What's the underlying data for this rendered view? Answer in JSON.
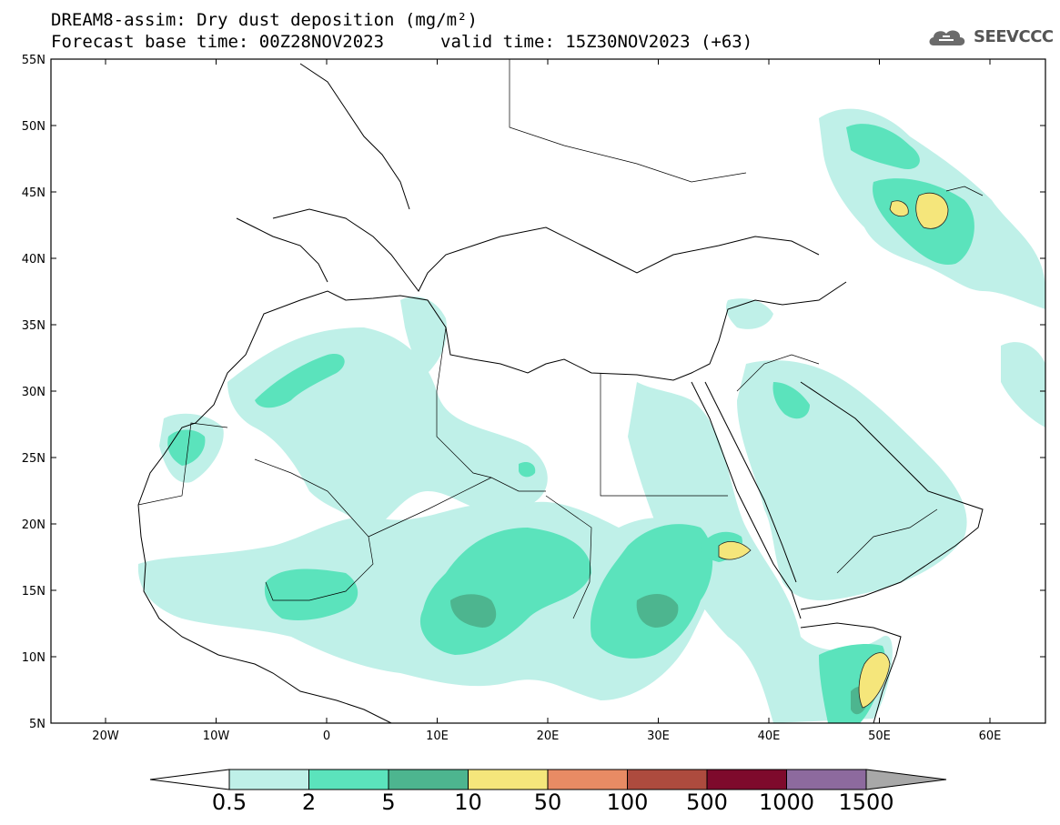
{
  "title": {
    "line1": "DREAM8-assim: Dry dust deposition (mg/m²)",
    "base_time": "Forecast base time: 00Z28NOV2023",
    "valid_time": "valid time: 15Z30NOV2023 (+63)"
  },
  "logo": {
    "text": "SEEVCCC",
    "icon": "cloud-icon"
  },
  "axes": {
    "lat_labels": [
      "55N",
      "50N",
      "45N",
      "40N",
      "35N",
      "30N",
      "25N",
      "20N",
      "15N",
      "10N",
      "5N"
    ],
    "lon_labels": [
      "20W",
      "10W",
      "0",
      "10E",
      "20E",
      "30E",
      "40E",
      "50E",
      "60E"
    ]
  },
  "colorbar": {
    "labels": [
      "0.5",
      "2",
      "5",
      "10",
      "50",
      "100",
      "500",
      "1000",
      "1500"
    ],
    "colors": [
      "#ffffff",
      "#bff0e8",
      "#5be3bc",
      "#4db58f",
      "#f5e67b",
      "#e88b64",
      "#ad4b3e",
      "#7e0a2c",
      "#8d6a9e",
      "#a8a8a8"
    ]
  },
  "palette": {
    "low": "#bff0e8",
    "mid": "#5be3bc",
    "high": "#4db58f",
    "peak": "#f5e67b"
  }
}
